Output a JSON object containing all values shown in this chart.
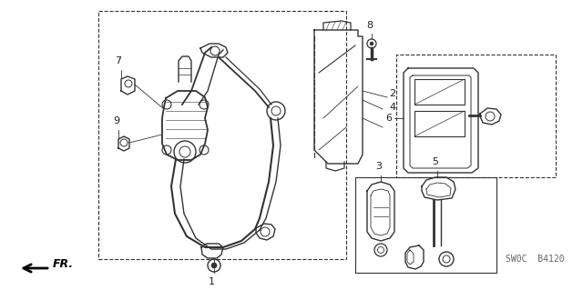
{
  "bg_color": "#ffffff",
  "line_color": "#333333",
  "text_color": "#222222",
  "sw0c_text": "SW0C  B4120",
  "fig_width": 6.4,
  "fig_height": 3.19,
  "dpi": 100
}
